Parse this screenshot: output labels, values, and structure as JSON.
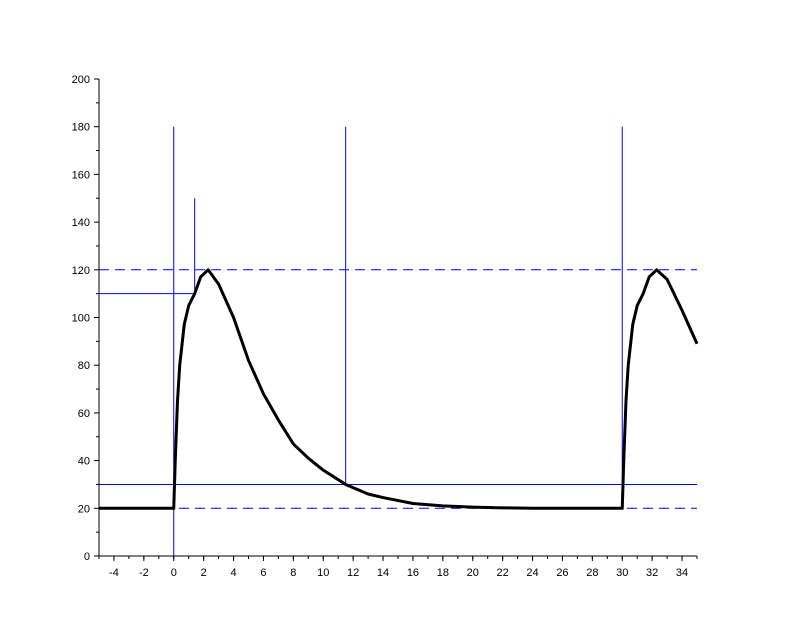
{
  "chart_data": {
    "type": "line",
    "title": "",
    "xlabel": "",
    "ylabel": "",
    "xlim": [
      -5,
      35
    ],
    "ylim": [
      0,
      200
    ],
    "grid": false,
    "x_ticks": [
      -4,
      -2,
      0,
      2,
      4,
      6,
      8,
      10,
      12,
      14,
      16,
      18,
      20,
      22,
      24,
      26,
      28,
      30,
      32,
      34
    ],
    "y_ticks": [
      0,
      20,
      40,
      60,
      80,
      100,
      120,
      140,
      160,
      180,
      200
    ],
    "series": [
      {
        "color": "#000000",
        "points": [
          [
            -5,
            20
          ],
          [
            0,
            20
          ],
          [
            0.1,
            40
          ],
          [
            0.25,
            65
          ],
          [
            0.4,
            80
          ],
          [
            0.7,
            97
          ],
          [
            1.0,
            105
          ],
          [
            1.4,
            110
          ],
          [
            1.8,
            117
          ],
          [
            2.3,
            120
          ],
          [
            3,
            114
          ],
          [
            4,
            100
          ],
          [
            5,
            82
          ],
          [
            6,
            68
          ],
          [
            7,
            57
          ],
          [
            8,
            47
          ],
          [
            9,
            41
          ],
          [
            10,
            36
          ],
          [
            11.5,
            30
          ],
          [
            13,
            26
          ],
          [
            14,
            24.5
          ],
          [
            16,
            22
          ],
          [
            18,
            21
          ],
          [
            20,
            20.5
          ],
          [
            22,
            20.2
          ],
          [
            24,
            20
          ],
          [
            30,
            20
          ],
          [
            30.1,
            40
          ],
          [
            30.25,
            65
          ],
          [
            30.4,
            80
          ],
          [
            30.7,
            97
          ],
          [
            31.0,
            105
          ],
          [
            31.4,
            110
          ],
          [
            31.8,
            117
          ],
          [
            32.3,
            120
          ],
          [
            33,
            116
          ],
          [
            34,
            103
          ],
          [
            35,
            89
          ]
        ]
      }
    ],
    "reference_lines": {
      "color": "#0000ff",
      "horizontal_dashed": [
        120,
        20
      ],
      "horizontal_solid": [
        {
          "y": 30,
          "x_from": -5,
          "x_to": 35
        },
        {
          "y": 110,
          "x_from": -5,
          "x_to": 1.4
        }
      ],
      "vertical": [
        {
          "x": 0,
          "y_from": 0,
          "y_to": 180
        },
        {
          "x": 1.4,
          "y_from": 110,
          "y_to": 150
        },
        {
          "x": 11.5,
          "y_from": 30,
          "y_to": 180
        },
        {
          "x": 30,
          "y_from": 20,
          "y_to": 180
        }
      ]
    }
  }
}
